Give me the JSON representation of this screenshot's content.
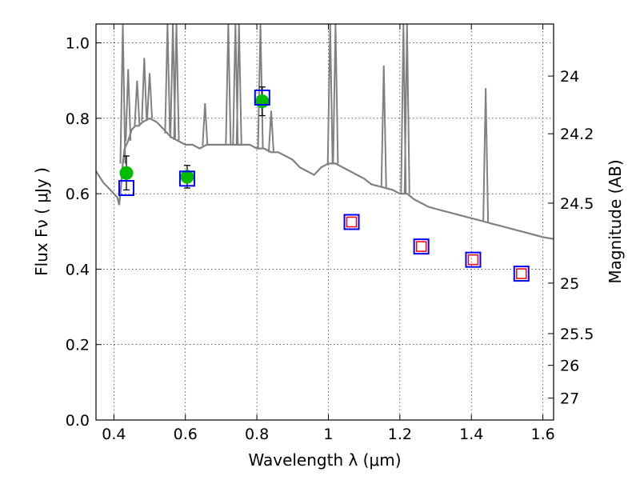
{
  "chart_data": {
    "type": "scatter",
    "title": "",
    "xlabel": "Wavelength  λ (μm)",
    "ylabel": "Flux  Fν  ( μJy )",
    "y2label": "Magnitude (AB)",
    "xlim": [
      0.35,
      1.63
    ],
    "ylim": [
      0.0,
      1.05
    ],
    "xticks": [
      0.4,
      0.6,
      0.8,
      1.0,
      1.2,
      1.4,
      1.6
    ],
    "xtick_labels": [
      "0.4",
      "0.6",
      "0.8",
      "1",
      "1.2",
      "1.4",
      "1.6"
    ],
    "yticks": [
      0.0,
      0.2,
      0.4,
      0.6,
      0.8,
      1.0
    ],
    "ytick_labels": [
      "0.0",
      "0.2",
      "0.4",
      "0.6",
      "0.8",
      "1.0"
    ],
    "y2ticks": [
      {
        "label": "24",
        "flux": 0.912
      },
      {
        "label": "24.2",
        "flux": 0.759
      },
      {
        "label": "24.5",
        "flux": 0.575
      },
      {
        "label": "25",
        "flux": 0.363
      },
      {
        "label": "25.5",
        "flux": 0.229
      },
      {
        "label": "26",
        "flux": 0.145
      },
      {
        "label": "27",
        "flux": 0.058
      }
    ],
    "grid": true,
    "series": [
      {
        "kind": "spectrum",
        "color": "#808080",
        "x": [
          0.35,
          0.37,
          0.39,
          0.41,
          0.415,
          0.42,
          0.425,
          0.43,
          0.44,
          0.45,
          0.46,
          0.47,
          0.48,
          0.5,
          0.52,
          0.54,
          0.56,
          0.58,
          0.6,
          0.62,
          0.64,
          0.66,
          0.68,
          0.7,
          0.72,
          0.74,
          0.76,
          0.78,
          0.8,
          0.82,
          0.84,
          0.86,
          0.88,
          0.9,
          0.92,
          0.94,
          0.96,
          0.98,
          1.0,
          1.02,
          1.04,
          1.06,
          1.08,
          1.1,
          1.12,
          1.14,
          1.16,
          1.18,
          1.2,
          1.22,
          1.24,
          1.26,
          1.28,
          1.3,
          1.32,
          1.34,
          1.36,
          1.38,
          1.4,
          1.42,
          1.44,
          1.46,
          1.48,
          1.5,
          1.52,
          1.54,
          1.56,
          1.58,
          1.6,
          1.63
        ],
        "y": [
          0.66,
          0.63,
          0.61,
          0.59,
          0.57,
          0.62,
          0.68,
          0.72,
          0.74,
          0.77,
          0.78,
          0.78,
          0.79,
          0.8,
          0.79,
          0.77,
          0.75,
          0.74,
          0.73,
          0.73,
          0.72,
          0.73,
          0.73,
          0.73,
          0.73,
          0.73,
          0.73,
          0.73,
          0.72,
          0.72,
          0.71,
          0.71,
          0.7,
          0.69,
          0.67,
          0.66,
          0.65,
          0.67,
          0.68,
          0.68,
          0.67,
          0.66,
          0.65,
          0.64,
          0.625,
          0.62,
          0.615,
          0.61,
          0.6,
          0.6,
          0.585,
          0.575,
          0.565,
          0.56,
          0.555,
          0.55,
          0.545,
          0.54,
          0.535,
          0.53,
          0.525,
          0.52,
          0.515,
          0.51,
          0.505,
          0.5,
          0.495,
          0.49,
          0.485,
          0.48
        ]
      },
      {
        "kind": "emission-lines",
        "color": "#808080",
        "lines": [
          {
            "x": 0.425,
            "peak": 1.05
          },
          {
            "x": 0.44,
            "peak": 0.93
          },
          {
            "x": 0.465,
            "peak": 0.9
          },
          {
            "x": 0.485,
            "peak": 0.96
          },
          {
            "x": 0.5,
            "peak": 0.92
          },
          {
            "x": 0.55,
            "peak": 1.05
          },
          {
            "x": 0.565,
            "peak": 1.05
          },
          {
            "x": 0.575,
            "peak": 1.05
          },
          {
            "x": 0.655,
            "peak": 0.84
          },
          {
            "x": 0.72,
            "peak": 1.05
          },
          {
            "x": 0.74,
            "peak": 1.05
          },
          {
            "x": 0.75,
            "peak": 1.05
          },
          {
            "x": 0.81,
            "peak": 1.05
          },
          {
            "x": 0.84,
            "peak": 0.82
          },
          {
            "x": 1.005,
            "peak": 1.05
          },
          {
            "x": 1.02,
            "peak": 1.05
          },
          {
            "x": 1.155,
            "peak": 0.94
          },
          {
            "x": 1.21,
            "peak": 1.05
          },
          {
            "x": 1.22,
            "peak": 1.05
          },
          {
            "x": 1.44,
            "peak": 0.88
          }
        ]
      },
      {
        "kind": "observed",
        "marker": "circle",
        "color": "#00bb00",
        "x": [
          0.435,
          0.605,
          0.815
        ],
        "y": [
          0.655,
          0.645,
          0.845
        ],
        "yerr": [
          0.045,
          0.03,
          0.038
        ]
      },
      {
        "kind": "model-photometry",
        "marker": "square",
        "color": "#0000ff",
        "x": [
          0.435,
          0.605,
          0.815,
          1.065,
          1.26,
          1.405,
          1.54
        ],
        "y": [
          0.615,
          0.64,
          0.855,
          0.525,
          0.46,
          0.425,
          0.388
        ]
      },
      {
        "kind": "model-photometry-inner",
        "marker": "square",
        "color": "#ff0000",
        "x": [
          1.065,
          1.26,
          1.405,
          1.54
        ],
        "y": [
          0.525,
          0.46,
          0.425,
          0.388
        ]
      }
    ]
  }
}
